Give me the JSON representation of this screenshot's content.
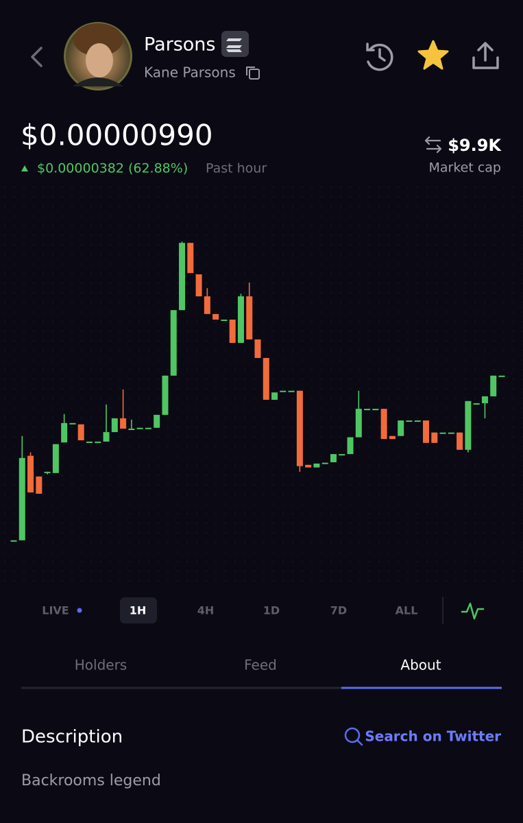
{
  "header": {
    "name": "Parsons",
    "handle": "Kane Parsons"
  },
  "price": {
    "current": "$0.00000990",
    "change": "$0.00000382 (62.88%)",
    "period": "Past hour",
    "market_cap": "$9.9K",
    "market_cap_label": "Market cap"
  },
  "chart_data": {
    "type": "candlestick",
    "up_color": "#4fc663",
    "down_color": "#f26b3a",
    "ylim": [
      5.09e-06,
      1.416e-05
    ],
    "open": [
      6.08e-06,
      6.08e-06,
      8.04e-06,
      7.56e-06,
      7.64e-06,
      7.64e-06,
      8.35e-06,
      8.8e-06,
      8.77e-06,
      8.37e-06,
      8.37e-06,
      8.37e-06,
      8.59e-06,
      8.91e-06,
      8.67e-06,
      8.69e-06,
      8.69e-06,
      8.69e-06,
      8.99e-06,
      9.9e-06,
      1.142e-05,
      1.298e-05,
      1.225e-05,
      1.174e-05,
      1.133e-05,
      1.12e-05,
      1.12e-05,
      1.066e-05,
      1.174e-05,
      1.074e-05,
      1.031e-05,
      9.34e-06,
      9.55e-06,
      9.55e-06,
      9.55e-06,
      7.83e-06,
      7.77e-06,
      7.88e-06,
      7.89e-06,
      8.08e-06,
      8.08e-06,
      8.47e-06,
      9.13e-06,
      9.13e-06,
      9.13e-06,
      8.5e-06,
      8.5e-06,
      8.86e-06,
      8.86e-06,
      8.86e-06,
      8.58e-06,
      8.58e-06,
      8.58e-06,
      8.58e-06,
      8.18e-06,
      9.26e-06,
      9.26e-06,
      9.42e-06,
      9.9e-06
    ],
    "high": [
      6.08e-06,
      8.5e-06,
      8.12e-06,
      7.56e-06,
      7.67e-06,
      8.31e-06,
      9.01e-06,
      8.8e-06,
      8.77e-06,
      8.37e-06,
      8.37e-06,
      9.23e-06,
      8.91e-06,
      9.58e-06,
      8.88e-06,
      8.69e-06,
      8.69e-06,
      8.99e-06,
      9.9e-06,
      1.142e-05,
      1.301e-05,
      1.298e-05,
      1.225e-05,
      1.193e-05,
      1.133e-05,
      1.12e-05,
      1.12e-05,
      1.18e-05,
      1.206e-05,
      1.074e-05,
      1.031e-05,
      9.51e-06,
      9.55e-06,
      9.55e-06,
      9.55e-06,
      7.83e-06,
      7.86e-06,
      7.88e-06,
      8.08e-06,
      8.08e-06,
      8.47e-06,
      9.55e-06,
      9.13e-06,
      9.13e-06,
      9.13e-06,
      8.5e-06,
      8.86e-06,
      8.86e-06,
      8.86e-06,
      8.86e-06,
      8.58e-06,
      8.58e-06,
      8.58e-06,
      8.58e-06,
      9.31e-06,
      9.26e-06,
      9.42e-06,
      9.9e-06,
      9.9e-06
    ],
    "low": [
      6.08e-06,
      6.08e-06,
      7.19e-06,
      7.16e-06,
      7.61e-06,
      7.64e-06,
      8.35e-06,
      8.8e-06,
      8.4e-06,
      8.37e-06,
      8.37e-06,
      8.37e-06,
      8.59e-06,
      8.67e-06,
      8.67e-06,
      8.69e-06,
      8.69e-06,
      8.69e-06,
      8.99e-06,
      9.9e-06,
      1.142e-05,
      1.228e-05,
      1.174e-05,
      1.133e-05,
      1.12e-05,
      1.12e-05,
      1.066e-05,
      1.066e-05,
      1.074e-05,
      1.031e-05,
      9.34e-06,
      9.34e-06,
      9.55e-06,
      9.55e-06,
      7.67e-06,
      7.77e-06,
      7.77e-06,
      7.88e-06,
      7.89e-06,
      8.08e-06,
      8.08e-06,
      8.47e-06,
      9.13e-06,
      9.13e-06,
      8.43e-06,
      8.43e-06,
      8.5e-06,
      8.86e-06,
      8.86e-06,
      8.34e-06,
      8.34e-06,
      8.58e-06,
      8.58e-06,
      8.18e-06,
      8.12e-06,
      9.26e-06,
      8.91e-06,
      9.42e-06,
      9.9e-06
    ],
    "close": [
      6.08e-06,
      7.99e-06,
      7.19e-06,
      7.16e-06,
      7.67e-06,
      8.31e-06,
      8.8e-06,
      8.8e-06,
      8.4e-06,
      8.37e-06,
      8.37e-06,
      8.59e-06,
      8.91e-06,
      8.67e-06,
      8.67e-06,
      8.69e-06,
      8.69e-06,
      8.99e-06,
      9.9e-06,
      1.142e-05,
      1.298e-05,
      1.228e-05,
      1.174e-05,
      1.133e-05,
      1.12e-05,
      1.12e-05,
      1.066e-05,
      1.174e-05,
      1.074e-05,
      1.031e-05,
      9.34e-06,
      9.51e-06,
      9.55e-06,
      9.55e-06,
      7.8e-06,
      7.77e-06,
      7.86e-06,
      7.88e-06,
      8.08e-06,
      8.08e-06,
      8.47e-06,
      9.13e-06,
      9.13e-06,
      9.13e-06,
      8.43e-06,
      8.43e-06,
      8.86e-06,
      8.86e-06,
      8.86e-06,
      8.34e-06,
      8.34e-06,
      8.58e-06,
      8.58e-06,
      8.18e-06,
      9.31e-06,
      9.26e-06,
      9.42e-06,
      9.9e-06,
      9.9e-06
    ]
  },
  "ranges": [
    "LIVE",
    "1H",
    "4H",
    "1D",
    "7D",
    "ALL"
  ],
  "tabs": [
    "Holders",
    "Feed",
    "About"
  ],
  "about": {
    "heading": "Description",
    "link": "Search on Twitter",
    "text": "Backrooms legend"
  }
}
